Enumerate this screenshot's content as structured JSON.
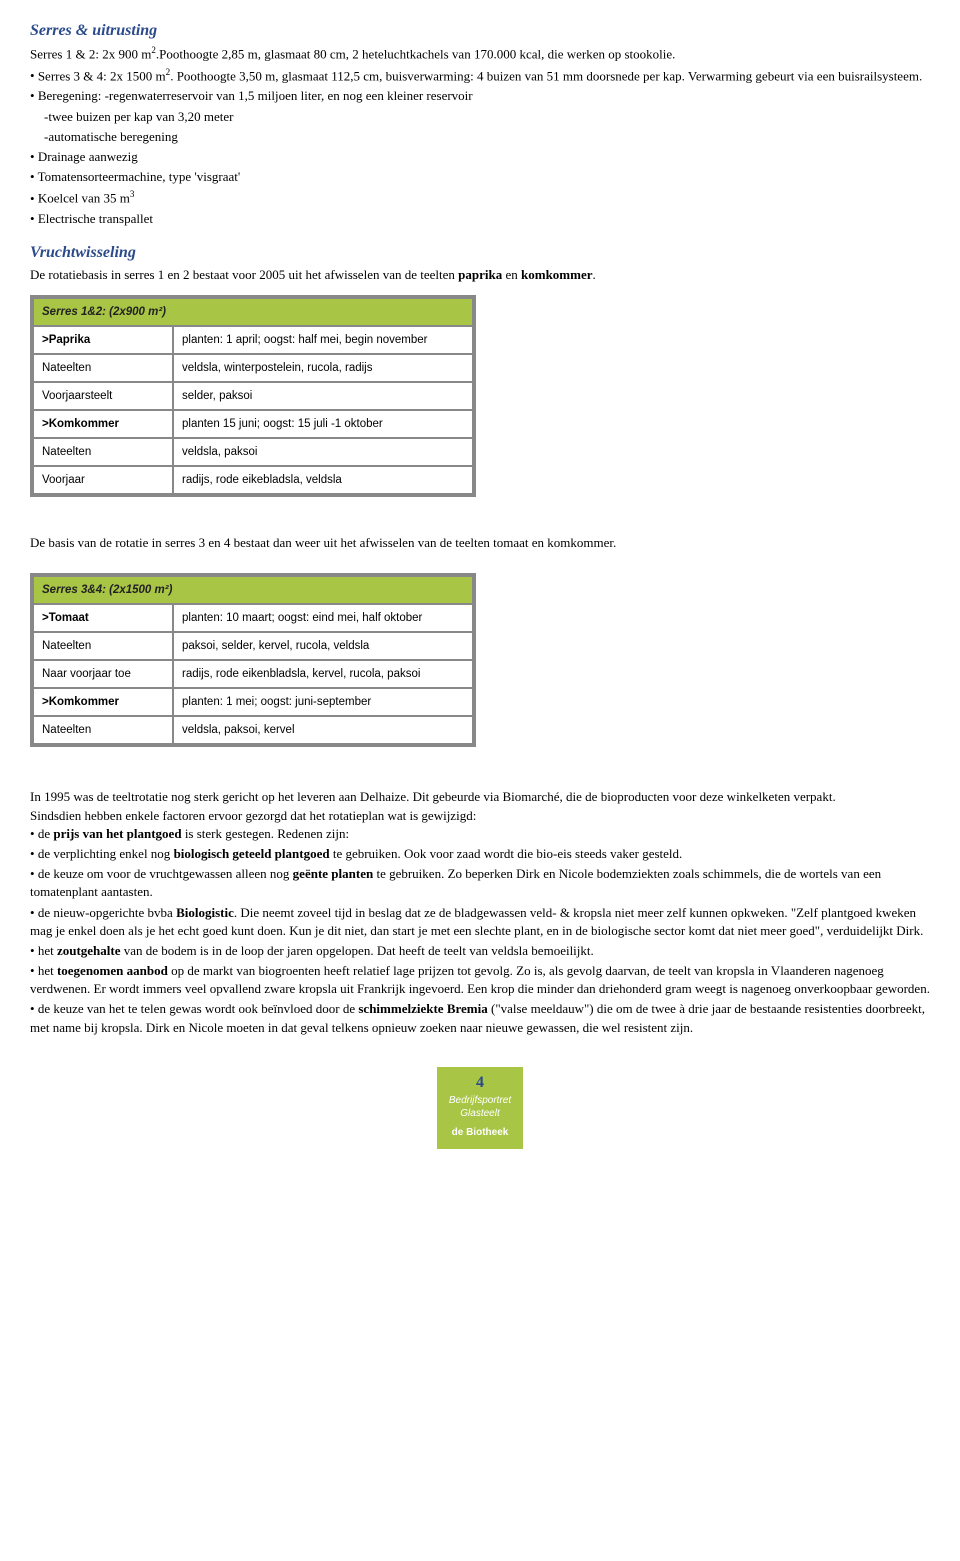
{
  "section1": {
    "title": "Serres & uitrusting",
    "line1_a": "Serres 1 & 2: 2x 900 m",
    "line1_b": ".Poothoogte 2,85 m, glasmaat 80 cm, 2 heteluchtkachels van 170.000 kcal, die werken op stookolie.",
    "b1_a": "Serres 3 & 4: 2x 1500 m",
    "b1_b": ". Poothoogte 3,50 m, glasmaat 112,5 cm, buisverwarming: 4 buizen van 51 mm doorsnede per kap. Verwarming gebeurt via een buisrailsysteem.",
    "b2": "Beregening: -regenwaterreservoir van 1,5 miljoen liter, en nog een kleiner reservoir",
    "b2s1": "-twee buizen per kap van 3,20 meter",
    "b2s2": "-automatische beregening",
    "b3": "Drainage aanwezig",
    "b4": "Tomatensorteermachine, type 'visgraat'",
    "b5_a": "Koelcel van 35 m",
    "b6": "Electrische transpallet"
  },
  "section2": {
    "title": "Vruchtwisseling",
    "intro_a": "De rotatiebasis in serres 1 en 2 bestaat voor 2005 uit het afwisselen van de teelten ",
    "intro_b": "paprika",
    "intro_c": " en ",
    "intro_d": "komkommer",
    "intro_e": "."
  },
  "table1": {
    "header": "Serres 1&2: (2x900 m²)",
    "rows": [
      {
        "c1": ">Paprika",
        "c2": "planten: 1 april; oogst: half mei, begin november",
        "bold": true
      },
      {
        "c1": "Nateelten",
        "c2": "veldsla, winterpostelein, rucola, radijs",
        "bold": false
      },
      {
        "c1": "Voorjaarsteelt",
        "c2": "selder, paksoi",
        "bold": false
      },
      {
        "c1": ">Komkommer",
        "c2": "planten 15 juni; oogst: 15 juli -1 oktober",
        "bold": true
      },
      {
        "c1": "Nateelten",
        "c2": "veldsla, paksoi",
        "bold": false
      },
      {
        "c1": "Voorjaar",
        "c2": "radijs, rode eikebladsla, veldsla",
        "bold": false
      }
    ]
  },
  "mid_text": "De basis van de rotatie in serres 3 en 4 bestaat dan weer uit het afwisselen van de teelten tomaat en komkommer.",
  "table2": {
    "header": "Serres 3&4: (2x1500 m²)",
    "rows": [
      {
        "c1": ">Tomaat",
        "c2": "planten: 10 maart; oogst: eind mei, half oktober",
        "bold": true
      },
      {
        "c1": "Nateelten",
        "c2": "paksoi, selder, kervel, rucola, veldsla",
        "bold": false
      },
      {
        "c1": "Naar voorjaar toe",
        "c2": "radijs, rode eikenbladsla, kervel, rucola, paksoi",
        "bold": false
      },
      {
        "c1": ">Komkommer",
        "c2": "planten: 1 mei; oogst: juni-september",
        "bold": true
      },
      {
        "c1": "Nateelten",
        "c2": "veldsla, paksoi, kervel",
        "bold": false
      }
    ]
  },
  "para2": {
    "p1": "In 1995 was de teeltrotatie nog sterk gericht op het leveren aan Delhaize. Dit gebeurde via Biomarché, die de bioproducten voor deze winkelketen verpakt.",
    "p2": "Sindsdien hebben enkele factoren ervoor gezorgd dat het rotatieplan wat is gewijzigd:",
    "b1a": "de ",
    "b1b": "prijs van het plantgoed",
    "b1c": " is sterk gestegen. Redenen zijn:",
    "b2a": "de verplichting enkel nog ",
    "b2b": "biologisch geteeld plantgoed",
    "b2c": " te gebruiken. Ook voor zaad wordt die bio-eis steeds vaker gesteld.",
    "b3a": "de keuze om voor de vruchtgewassen alleen nog ",
    "b3b": "geënte planten",
    "b3c": " te gebruiken. Zo beperken Dirk en Nicole bodemziekten zoals schimmels, die de wortels van een tomatenplant aantasten.",
    "b4a": "de nieuw-opgerichte bvba ",
    "b4b": "Biologistic",
    "b4c": ". Die neemt zoveel tijd in beslag dat ze de bladgewassen veld- & kropsla niet meer zelf kunnen opkweken. \"Zelf plantgoed kweken mag je enkel doen als je het echt goed kunt doen. Kun je dit niet, dan start je met een slechte plant, en in de biologische sector komt dat niet meer goed\", verduidelijkt Dirk.",
    "b5a": "het ",
    "b5b": "zoutgehalte",
    "b5c": " van de bodem is in de loop der jaren opgelopen. Dat heeft de teelt van veldsla bemoeilijkt.",
    "b6a": "het ",
    "b6b": "toegenomen aanbod",
    "b6c": " op de markt van biogroenten heeft relatief lage prijzen tot gevolg. Zo is, als gevolg daarvan, de teelt van kropsla in Vlaanderen nagenoeg verdwenen. Er wordt immers veel opvallend zware kropsla uit Frankrijk ingevoerd. Een krop die minder dan driehonderd gram weegt is nagenoeg onverkoopbaar geworden.",
    "b7a": "de keuze van het te telen gewas wordt ook beïnvloed door de ",
    "b7b": "schimmelziekte Bremia",
    "b7c": " (\"valse meeldauw\") die om de twee à drie jaar de bestaande resistenties doorbreekt, met name bij kropsla. Dirk en Nicole moeten in dat geval telkens opnieuw zoeken naar nieuwe gewassen, die wel resistent zijn."
  },
  "footer": {
    "num": "4",
    "l1": "Bedrijfsportret",
    "l2": "Glasteelt",
    "l3": "de Biotheek"
  },
  "colors": {
    "title": "#2b4a8b",
    "table_header_bg": "#a8c545",
    "table_border": "#888888",
    "badge_bg": "#a8c545"
  }
}
